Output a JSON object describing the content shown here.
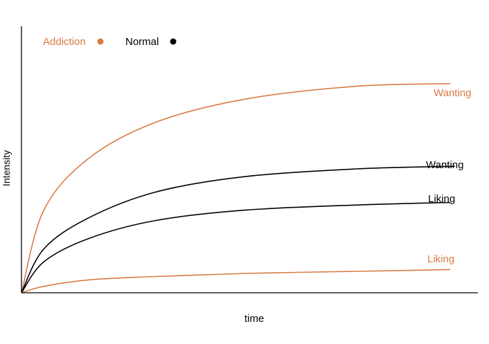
{
  "chart_data": {
    "type": "line",
    "title": "",
    "xlabel": "time",
    "ylabel": "Intensity",
    "grid": false,
    "legend": {
      "placement": "top-left",
      "entries": [
        {
          "label": "Addiction",
          "color": "#d97b45"
        },
        {
          "label": "Normal",
          "color": "#000000"
        }
      ]
    },
    "xlim": [
      0,
      1
    ],
    "ylim": [
      0,
      1
    ],
    "series": [
      {
        "group": "Addiction",
        "label": "Wanting",
        "color": "#d97b45",
        "x": [
          0,
          0.05,
          0.15,
          0.3,
          0.5,
          0.75,
          0.96
        ],
        "y": [
          0,
          0.32,
          0.52,
          0.66,
          0.75,
          0.8,
          0.81
        ]
      },
      {
        "group": "Normal",
        "label": "Wanting",
        "color": "#000000",
        "x": [
          0,
          0.05,
          0.15,
          0.3,
          0.5,
          0.75,
          0.97
        ],
        "y": [
          0,
          0.17,
          0.29,
          0.39,
          0.45,
          0.48,
          0.49
        ]
      },
      {
        "group": "Normal",
        "label": "Liking",
        "color": "#000000",
        "x": [
          0,
          0.05,
          0.15,
          0.3,
          0.5,
          0.75,
          0.96
        ],
        "y": [
          0,
          0.12,
          0.21,
          0.28,
          0.32,
          0.34,
          0.35
        ]
      },
      {
        "group": "Addiction",
        "label": "Liking",
        "color": "#d97b45",
        "x": [
          0,
          0.05,
          0.15,
          0.3,
          0.5,
          0.75,
          0.96
        ],
        "y": [
          0,
          0.025,
          0.05,
          0.063,
          0.075,
          0.083,
          0.09
        ]
      }
    ]
  }
}
